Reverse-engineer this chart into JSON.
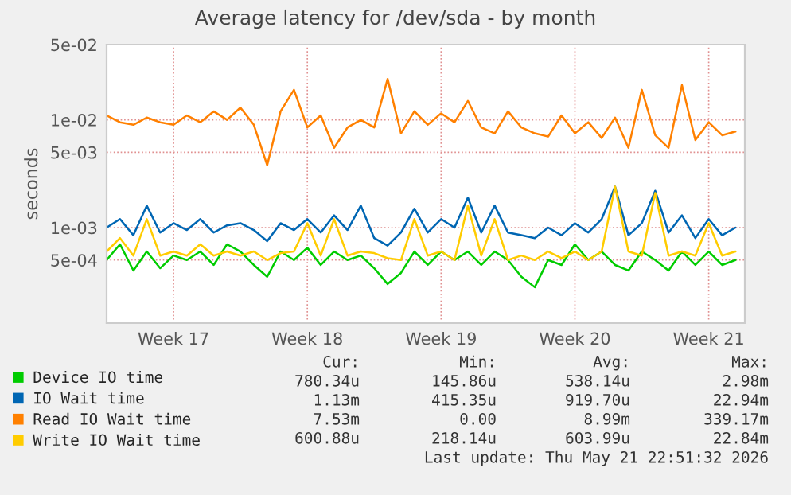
{
  "chart_data": {
    "type": "line",
    "title": "Average latency for /dev/sda - by month",
    "ylabel": "seconds",
    "log": "y",
    "ylim": [
      0.00013,
      0.05
    ],
    "yticks": [
      {
        "value": 0.0005,
        "label": "5e-04"
      },
      {
        "value": 0.001,
        "label": "1e-03"
      },
      {
        "value": 0.005,
        "label": "5e-03"
      },
      {
        "value": 0.01,
        "label": "1e-02"
      },
      {
        "value": 0.05,
        "label": "5e-02"
      }
    ],
    "grid": true,
    "legend": "bottom",
    "categories": [
      null,
      null,
      null,
      null,
      null,
      "Week 17",
      null,
      null,
      null,
      null,
      null,
      null,
      null,
      null,
      null,
      "Week 18",
      null,
      null,
      null,
      null,
      null,
      null,
      null,
      null,
      null,
      "Week 19",
      null,
      null,
      null,
      null,
      null,
      null,
      null,
      null,
      null,
      "Week 20",
      null,
      null,
      null,
      null,
      null,
      null,
      null,
      null,
      null,
      "Week 21",
      null,
      null
    ],
    "series": [
      {
        "name": "Device IO time",
        "color": "#00cc00",
        "values": [
          0.0005,
          0.0007,
          0.0004,
          0.0006,
          0.00042,
          0.00055,
          0.0005,
          0.0006,
          0.00045,
          0.0007,
          0.0006,
          0.00045,
          0.00035,
          0.0006,
          0.0005,
          0.00065,
          0.00045,
          0.0006,
          0.0005,
          0.00055,
          0.00042,
          0.0003,
          0.00038,
          0.0006,
          0.00045,
          0.0006,
          0.0005,
          0.0006,
          0.00045,
          0.0006,
          0.0005,
          0.00035,
          0.00028,
          0.0005,
          0.00045,
          0.0007,
          0.0005,
          0.0006,
          0.00045,
          0.0004,
          0.0006,
          0.0005,
          0.0004,
          0.0006,
          0.00045,
          0.0006,
          0.00045,
          0.0005
        ]
      },
      {
        "name": "IO Wait time",
        "color": "#0066b3",
        "values": [
          0.001,
          0.0012,
          0.00085,
          0.0016,
          0.0009,
          0.0011,
          0.00095,
          0.0012,
          0.0009,
          0.00105,
          0.0011,
          0.00095,
          0.00075,
          0.0011,
          0.00095,
          0.0012,
          0.0009,
          0.0013,
          0.00095,
          0.0016,
          0.0008,
          0.00068,
          0.0009,
          0.0015,
          0.0009,
          0.0012,
          0.001,
          0.0019,
          0.0009,
          0.0016,
          0.0009,
          0.00085,
          0.0008,
          0.001,
          0.00085,
          0.0011,
          0.0009,
          0.0012,
          0.0024,
          0.00085,
          0.0011,
          0.0022,
          0.0009,
          0.0013,
          0.0008,
          0.0012,
          0.00085,
          0.001
        ]
      },
      {
        "name": "Read IO Wait time",
        "color": "#ff8000",
        "values": [
          0.011,
          0.0095,
          0.009,
          0.0105,
          0.0095,
          0.009,
          0.011,
          0.0095,
          0.012,
          0.01,
          0.013,
          0.009,
          0.0038,
          0.012,
          0.019,
          0.0085,
          0.011,
          0.0055,
          0.0085,
          0.01,
          0.0085,
          0.024,
          0.0075,
          0.012,
          0.009,
          0.0115,
          0.0095,
          0.015,
          0.0085,
          0.0075,
          0.012,
          0.0085,
          0.0075,
          0.007,
          0.011,
          0.0075,
          0.0095,
          0.0068,
          0.0105,
          0.0055,
          0.019,
          0.0072,
          0.0055,
          0.021,
          0.0065,
          0.0095,
          0.0072,
          0.0078
        ]
      },
      {
        "name": "Write IO Wait time",
        "color": "#ffcc00",
        "values": [
          0.0006,
          0.0008,
          0.00055,
          0.0012,
          0.00055,
          0.0006,
          0.00055,
          0.0007,
          0.00055,
          0.0006,
          0.00055,
          0.0006,
          0.0005,
          0.00058,
          0.0006,
          0.0011,
          0.00055,
          0.0012,
          0.00055,
          0.0006,
          0.00058,
          0.00052,
          0.0005,
          0.0012,
          0.00055,
          0.0006,
          0.0005,
          0.0016,
          0.00055,
          0.0012,
          0.0005,
          0.00055,
          0.0005,
          0.0006,
          0.00052,
          0.0006,
          0.0005,
          0.0006,
          0.0024,
          0.0006,
          0.00055,
          0.0021,
          0.00055,
          0.0006,
          0.00055,
          0.0011,
          0.00055,
          0.0006
        ]
      }
    ],
    "annotations": [
      "Cur:",
      "Min:",
      "Avg:",
      "Max:",
      "780.34u",
      "145.86u",
      "538.14u",
      "2.98m",
      "1.13m",
      "415.35u",
      "919.70u",
      "22.94m",
      "7.53m",
      "0.00",
      "8.99m",
      "339.17m",
      "600.88u",
      "218.14u",
      "603.99u",
      "22.84m",
      "Last update: Thu May 21 22:51:32 2026"
    ]
  }
}
